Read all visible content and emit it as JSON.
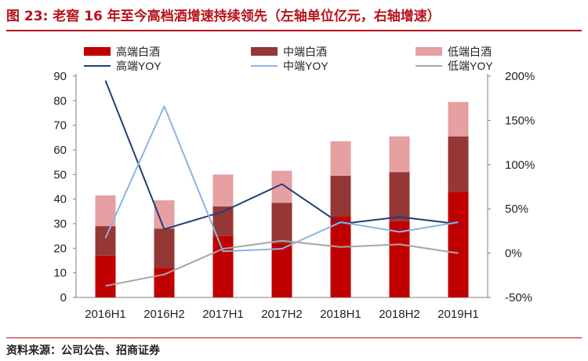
{
  "figure": {
    "title": "图 23:  老窖 16 年至今高档酒增速持续领先（左轴单位亿元，右轴增速）",
    "source": "资料来源：公司公告、招商证券"
  },
  "colors": {
    "high_bar": "#c00000",
    "mid_bar": "#953735",
    "low_bar": "#e6a0a2",
    "high_yoy": "#1f3f75",
    "mid_yoy": "#8db4e2",
    "low_yoy": "#a6a6a6",
    "accent": "#b8121b"
  },
  "chart_data": {
    "type": "bar",
    "stacked": true,
    "categories": [
      "2016H1",
      "2016H2",
      "2017H1",
      "2017H2",
      "2018H1",
      "2018H2",
      "2019H1"
    ],
    "series": [
      {
        "name": "高端白酒",
        "type": "bar",
        "axis": "left",
        "values": [
          17,
          12,
          25,
          22,
          33,
          31,
          43
        ]
      },
      {
        "name": "中端白酒",
        "type": "bar",
        "axis": "left",
        "values": [
          12,
          16,
          12,
          16.5,
          16.5,
          20,
          22.5
        ]
      },
      {
        "name": "低端白酒",
        "type": "bar",
        "axis": "left",
        "values": [
          12.5,
          11.5,
          13,
          13,
          14,
          14.5,
          14
        ]
      },
      {
        "name": "高端YOY",
        "type": "line",
        "axis": "right",
        "values": [
          195,
          27,
          47,
          78,
          33,
          41,
          33
        ]
      },
      {
        "name": "中端YOY",
        "type": "line",
        "axis": "right",
        "values": [
          17,
          166,
          2,
          5,
          35,
          24,
          35
        ]
      },
      {
        "name": "低端YOY",
        "type": "line",
        "axis": "right",
        "values": [
          -37,
          -24,
          5,
          14,
          7,
          10,
          0
        ]
      }
    ],
    "yleft": {
      "min": 0,
      "max": 90,
      "ticks": [
        "0",
        "10",
        "20",
        "30",
        "40",
        "50",
        "60",
        "70",
        "80",
        "90"
      ]
    },
    "yright": {
      "min": -50,
      "max": 200,
      "ticks": [
        "-50%",
        "0%",
        "50%",
        "100%",
        "150%",
        "200%"
      ]
    },
    "legend": {
      "position": "top",
      "items": [
        {
          "label": "高端白酒",
          "kind": "bar",
          "series": 0
        },
        {
          "label": "中端白酒",
          "kind": "bar",
          "series": 1
        },
        {
          "label": "低端白酒",
          "kind": "bar",
          "series": 2
        },
        {
          "label": "高端YOY",
          "kind": "line",
          "series": 3
        },
        {
          "label": "中端YOY",
          "kind": "line",
          "series": 4
        },
        {
          "label": "低端YOY",
          "kind": "line",
          "series": 5
        }
      ]
    },
    "grid": false
  }
}
